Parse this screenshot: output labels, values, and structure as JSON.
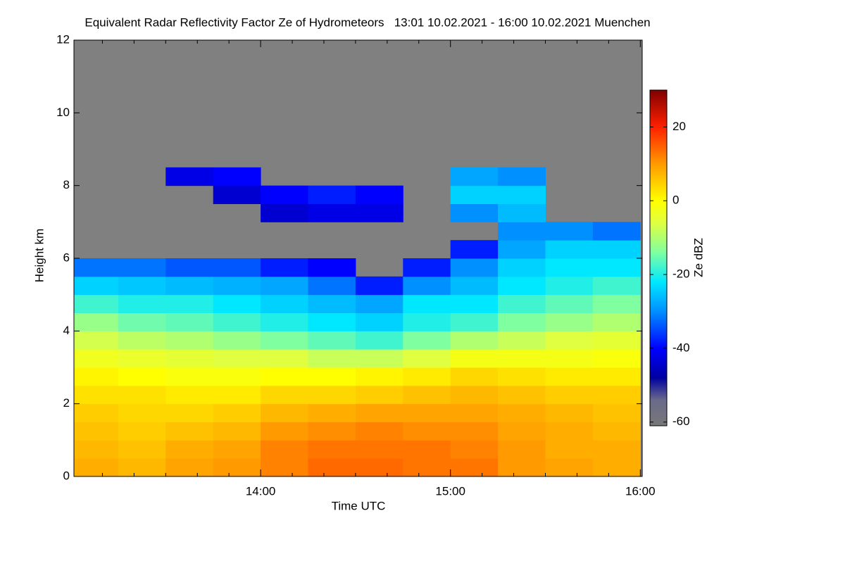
{
  "chart_data": {
    "type": "heatmap",
    "title": "Equivalent Radar Reflectivity Factor Ze of Hydrometeors   13:01 10.02.2021 - 16:00 10.02.2021 Muenchen",
    "x_label": "Time UTC",
    "y_label": "Height km",
    "colorbar_label": "Ze dBZ",
    "xlim": [
      13.0167,
      16.01
    ],
    "ylim": [
      0,
      12
    ],
    "xticks": [
      {
        "value": 14,
        "label": "14:00"
      },
      {
        "value": 15,
        "label": "15:00"
      },
      {
        "value": 16,
        "label": "16:00"
      }
    ],
    "xminor_ticks": [
      13.1667,
      13.3333,
      13.5,
      13.6667,
      13.8333,
      14.1667,
      14.3333,
      14.5,
      14.6667,
      14.8333,
      15.1667,
      15.3333,
      15.5,
      15.6667,
      15.8333
    ],
    "yticks": [
      0,
      2,
      4,
      6,
      8,
      10,
      12
    ],
    "zlim": [
      -61,
      30
    ],
    "zticks": [
      -60,
      -40,
      -20,
      0,
      20
    ],
    "missing_color": "#808080",
    "colorscale": [
      [
        -61,
        "#787878"
      ],
      [
        -54,
        "#6a6a8a"
      ],
      [
        -48,
        "#0000a0"
      ],
      [
        -40,
        "#0000ff"
      ],
      [
        -30,
        "#0090ff"
      ],
      [
        -22,
        "#00e8ff"
      ],
      [
        -14,
        "#80ffa0"
      ],
      [
        -6,
        "#e0ff40"
      ],
      [
        0,
        "#ffff00"
      ],
      [
        10,
        "#ff9a00"
      ],
      [
        20,
        "#ff2000"
      ],
      [
        30,
        "#800000"
      ]
    ],
    "x_edges": [
      13,
      13.25,
      13.5,
      13.75,
      14,
      14.25,
      14.5,
      14.75,
      15,
      15.25,
      15.5,
      15.75,
      16
    ],
    "y_edges": [
      0,
      0.5,
      1,
      1.5,
      2,
      2.5,
      3,
      3.5,
      4,
      4.5,
      5,
      5.5,
      6,
      6.5,
      7,
      7.5,
      8,
      8.5,
      9
    ],
    "z": [
      [
        8,
        7,
        6,
        5,
        3,
        1,
        -3,
        -7,
        -12,
        -18,
        -24,
        -32,
        null,
        null,
        null,
        null,
        null,
        null
      ],
      [
        7,
        6,
        5,
        4,
        3,
        0,
        -4,
        -9,
        -15,
        -20,
        -25,
        -32,
        null,
        null,
        null,
        null,
        null,
        null
      ],
      [
        9,
        8,
        6,
        4,
        2,
        -1,
        -5,
        -10,
        -16,
        -20,
        -26,
        -34,
        null,
        null,
        null,
        null,
        -42,
        null
      ],
      [
        10,
        9,
        7,
        5,
        2,
        -1,
        -6,
        -12,
        -18,
        -22,
        -27,
        -34,
        null,
        null,
        null,
        -44,
        -40,
        null
      ],
      [
        12,
        12,
        10,
        7,
        4,
        0,
        -6,
        -14,
        -20,
        -24,
        -28,
        -38,
        null,
        null,
        -44,
        -40,
        null,
        null
      ],
      [
        14,
        13,
        11,
        8,
        4,
        0,
        -8,
        -16,
        -22,
        -26,
        -32,
        -40,
        null,
        null,
        -42,
        -38,
        null,
        null
      ],
      [
        14,
        13,
        12,
        9,
        5,
        1,
        -8,
        -18,
        -24,
        -28,
        -38,
        null,
        null,
        null,
        -42,
        -40,
        null,
        null
      ],
      [
        13,
        13,
        11,
        9,
        6,
        2,
        -6,
        -14,
        -20,
        -22,
        -30,
        -38,
        null,
        null,
        null,
        null,
        null,
        null
      ],
      [
        13,
        12,
        11,
        9,
        7,
        4,
        -2,
        -10,
        -18,
        -22,
        -26,
        -30,
        -38,
        null,
        -30,
        -24,
        -28,
        null
      ],
      [
        10,
        10,
        9,
        8,
        6,
        3,
        -2,
        -8,
        -14,
        -18,
        -22,
        -24,
        -28,
        -30,
        -26,
        -24,
        -30,
        null
      ],
      [
        9,
        8,
        8,
        7,
        5,
        2,
        -2,
        -6,
        -12,
        -16,
        -20,
        -22,
        -24,
        -30,
        null,
        null,
        null,
        null
      ],
      [
        8,
        8,
        7,
        6,
        5,
        2,
        -1,
        -5,
        -10,
        -14,
        -18,
        -22,
        -24,
        -32,
        null,
        null,
        null,
        null
      ]
    ]
  }
}
